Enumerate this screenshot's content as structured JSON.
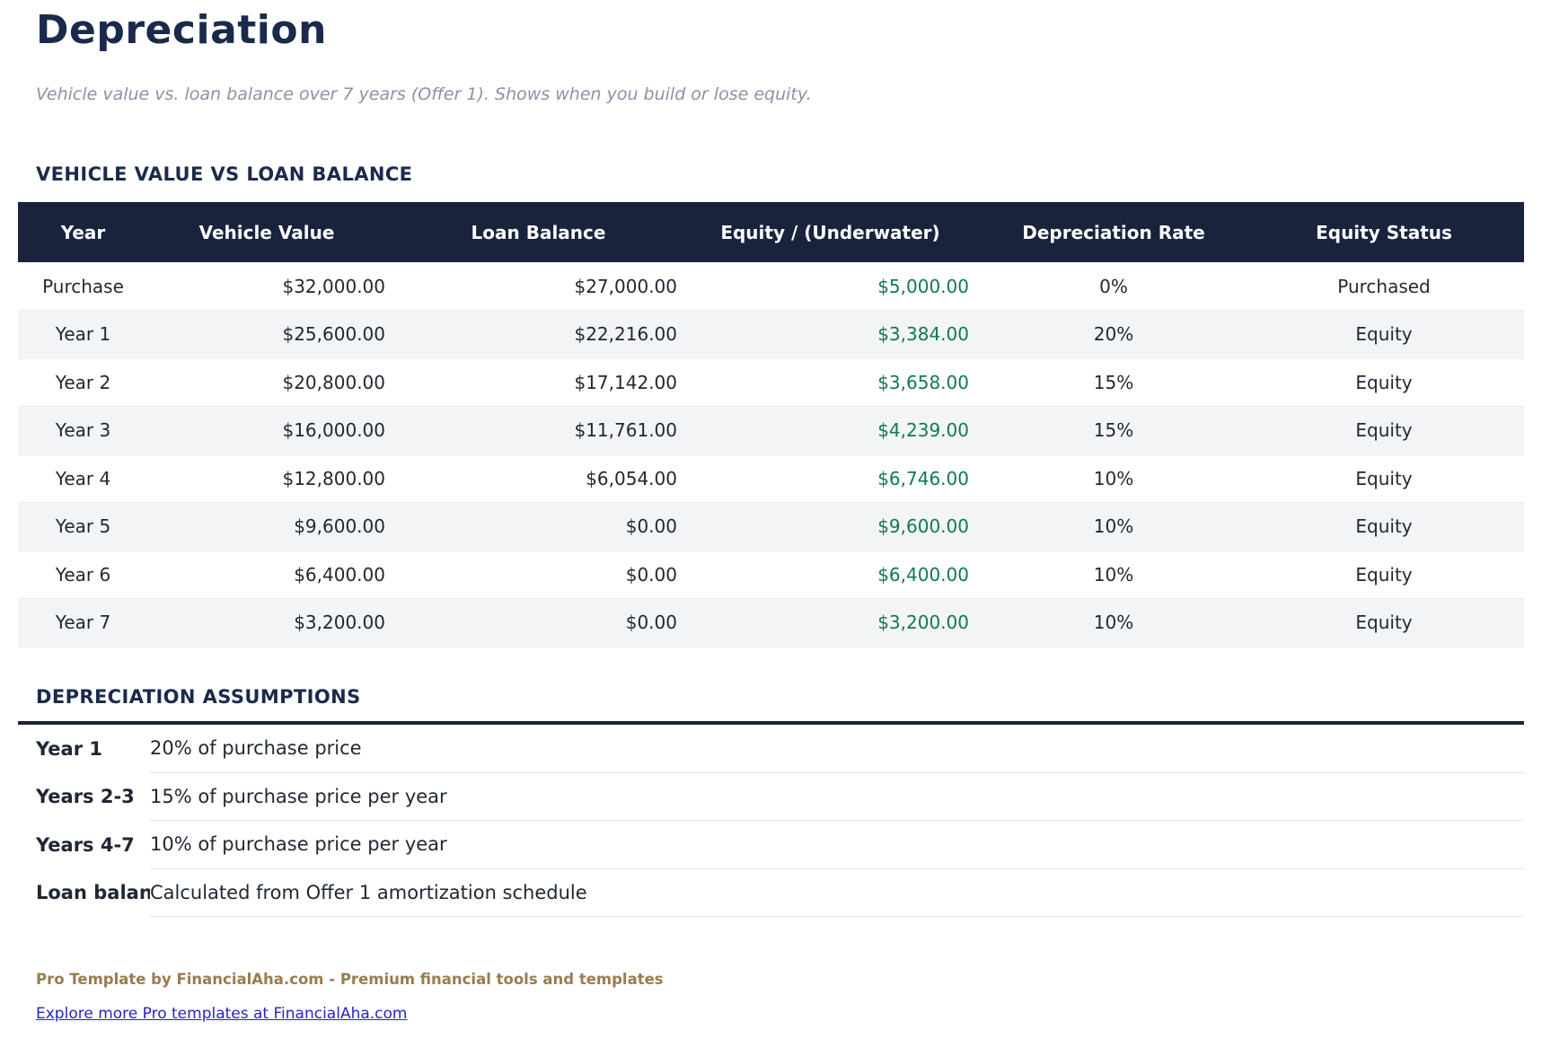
{
  "page": {
    "title": "Depreciation",
    "subtitle": "Vehicle value vs. loan balance over 7 years (Offer 1). Shows when you build or lose equity."
  },
  "value_table": {
    "section_title": "VEHICLE VALUE VS LOAN BALANCE",
    "columns": [
      "Year",
      "Vehicle Value",
      "Loan Balance",
      "Equity / (Underwater)",
      "Depreciation Rate",
      "Equity Status"
    ],
    "rows": [
      {
        "year": "Purchase",
        "vehicle_value": "$32,000.00",
        "loan_balance": "$27,000.00",
        "equity": "$5,000.00",
        "depreciation_rate": "0%",
        "equity_status": "Purchased"
      },
      {
        "year": "Year 1",
        "vehicle_value": "$25,600.00",
        "loan_balance": "$22,216.00",
        "equity": "$3,384.00",
        "depreciation_rate": "20%",
        "equity_status": "Equity"
      },
      {
        "year": "Year 2",
        "vehicle_value": "$20,800.00",
        "loan_balance": "$17,142.00",
        "equity": "$3,658.00",
        "depreciation_rate": "15%",
        "equity_status": "Equity"
      },
      {
        "year": "Year 3",
        "vehicle_value": "$16,000.00",
        "loan_balance": "$11,761.00",
        "equity": "$4,239.00",
        "depreciation_rate": "15%",
        "equity_status": "Equity"
      },
      {
        "year": "Year 4",
        "vehicle_value": "$12,800.00",
        "loan_balance": "$6,054.00",
        "equity": "$6,746.00",
        "depreciation_rate": "10%",
        "equity_status": "Equity"
      },
      {
        "year": "Year 5",
        "vehicle_value": "$9,600.00",
        "loan_balance": "$0.00",
        "equity": "$9,600.00",
        "depreciation_rate": "10%",
        "equity_status": "Equity"
      },
      {
        "year": "Year 6",
        "vehicle_value": "$6,400.00",
        "loan_balance": "$0.00",
        "equity": "$6,400.00",
        "depreciation_rate": "10%",
        "equity_status": "Equity"
      },
      {
        "year": "Year 7",
        "vehicle_value": "$3,200.00",
        "loan_balance": "$0.00",
        "equity": "$3,200.00",
        "depreciation_rate": "10%",
        "equity_status": "Equity"
      }
    ]
  },
  "assumptions": {
    "section_title": "DEPRECIATION ASSUMPTIONS",
    "rows": [
      {
        "label": "Year 1",
        "value": "20% of purchase price"
      },
      {
        "label": "Years 2-3",
        "value": "15% of purchase price per year"
      },
      {
        "label": "Years 4-7",
        "value": "10% of purchase price per year"
      },
      {
        "label": "Loan balance",
        "value": "Calculated from Offer 1 amortization schedule"
      }
    ]
  },
  "footer": {
    "brand_line": "Pro Template by FinancialAha.com - Premium financial tools and templates",
    "link_text": "Explore more Pro templates at FinancialAha.com"
  },
  "colors": {
    "heading_navy": "#1b2a4b",
    "table_header_bg": "#19233c",
    "equity_green": "#0f7a4f",
    "row_stripe": "#f3f4f6",
    "subtitle_gray": "#8a92a6",
    "footer_brown": "#9a7c4e",
    "link_blue": "#2424c8",
    "body_text": "#1f2733"
  }
}
